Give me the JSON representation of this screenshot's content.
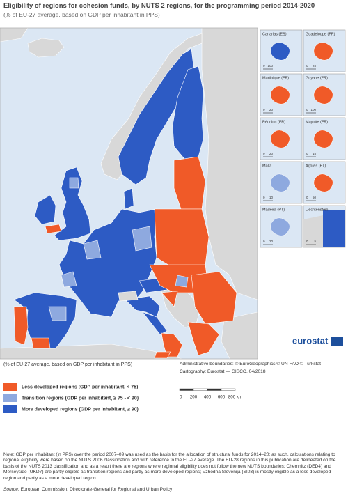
{
  "header": {
    "title": "Eligibility of regions for cohesion funds, by NUTS 2 regions, for the programming period 2014-2020",
    "subtitle": "(% of EU-27 average, based on GDP per inhabitant in PPS)"
  },
  "map": {
    "logo": "eurostat",
    "insets": [
      {
        "label": "Canarias (ES)",
        "scale": [
          "0",
          "100"
        ]
      },
      {
        "label": "Guadeloupe (FR)",
        "scale": [
          "0",
          "25"
        ]
      },
      {
        "label": "Martinique (FR)",
        "scale": [
          "0",
          "20"
        ]
      },
      {
        "label": "Guyane (FR)",
        "scale": [
          "0",
          "100"
        ]
      },
      {
        "label": "Réunion (FR)",
        "scale": [
          "0",
          "20"
        ]
      },
      {
        "label": "Mayotte (FR)",
        "scale": [
          "0",
          "15"
        ]
      },
      {
        "label": "Malta",
        "scale": [
          "0",
          "10"
        ]
      },
      {
        "label": "Açores (PT)",
        "scale": [
          "0",
          "50"
        ]
      },
      {
        "label": "Madeira (PT)",
        "scale": [
          "0",
          "20"
        ]
      },
      {
        "label": "Liechtenstein",
        "scale": [
          "0",
          "5"
        ]
      }
    ]
  },
  "legend": {
    "title": "(% of EU-27 average, based on GDP per inhabitant in PPS)",
    "items": [
      {
        "label": "Less developed regions (GDP per inhabitant, < 75)",
        "color": "#f05a28"
      },
      {
        "label": "Transition regions (GDP per inhabitant, ≥ 75 - < 90)",
        "color": "#8ea9df"
      },
      {
        "label": "More developed regions (GDP per inhabitant, ≥ 90)",
        "color": "#2d5bc4"
      }
    ]
  },
  "credits": [
    "Administrative boundaries: © EuroGeographics © UN-FAO © Turkstat",
    "Cartography: Eurostat — GISCO, 04/2018"
  ],
  "scale_bar": [
    "0",
    "200",
    "400",
    "600",
    "800 km"
  ],
  "note": "Note: GDP per inhabitant (in PPS) over the period 2007–09 was used as the basis for the allocation of structural funds for 2014–20; as such, calculations relating to regional eligibility were based on the NUTS 2006 classification and with reference to the EU-27 average. The EU-28 regions in this publication are delineated on the basis of the NUTS 2013 classification and as a result there are regions where regional eligibility does not follow the new NUTS boundaries: Chemnitz (DED4) and Merseyside (UKD7) are partly eligible as transition regions and partly as more developed regions; Vzhodna Slovenija (SI03) is mostly eligible as a less developed region and partly as a more developed region.",
  "source": {
    "label": "Source:",
    "text": "European Commission, Directorate-General for Regional and Urban Policy"
  }
}
